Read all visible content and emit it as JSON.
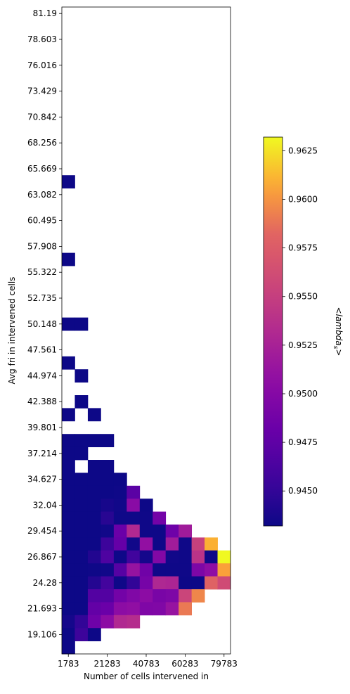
{
  "chart_data": {
    "type": "heatmap",
    "xlabel": "Number of cells intervened in",
    "ylabel": "Avg fri in intervened cells",
    "x_ticks": [
      "1783",
      "21283",
      "40783",
      "60283",
      "79783"
    ],
    "y_ticks": [
      "81.19",
      "78.603",
      "76.016",
      "73.429",
      "70.842",
      "68.256",
      "65.669",
      "63.082",
      "60.495",
      "57.908",
      "55.322",
      "52.735",
      "50.148",
      "47.561",
      "44.974",
      "42.388",
      "39.801",
      "37.214",
      "34.627",
      "32.04",
      "29.454",
      "26.867",
      "24.28",
      "21.693",
      "19.106"
    ],
    "grid": false,
    "colorbar": {
      "label": "<lambda_s>",
      "label_prefix": "<",
      "label_main": "lambda",
      "label_sub": "s",
      "label_suffix": ">",
      "min": 0.9432,
      "max": 0.9632,
      "ticks": [
        "0.9450",
        "0.9475",
        "0.9500",
        "0.9525",
        "0.9550",
        "0.9575",
        "0.9600",
        "0.9625"
      ],
      "colormap": "plasma"
    },
    "n_cols": 13,
    "n_rows": 50,
    "cells": [
      [
        0,
        13,
        0.9432
      ],
      [
        0,
        19,
        0.9432
      ],
      [
        0,
        24,
        0.9432
      ],
      [
        1,
        24,
        0.9432
      ],
      [
        0,
        27,
        0.9432
      ],
      [
        1,
        28,
        0.9432
      ],
      [
        1,
        30,
        0.9432
      ],
      [
        0,
        31,
        0.9432
      ],
      [
        2,
        31,
        0.9432
      ],
      [
        0,
        33,
        0.9432
      ],
      [
        1,
        33,
        0.9432
      ],
      [
        2,
        33,
        0.9432
      ],
      [
        3,
        33,
        0.9432
      ],
      [
        0,
        34,
        0.9432
      ],
      [
        1,
        34,
        0.9432
      ],
      [
        0,
        35,
        0.9432
      ],
      [
        2,
        35,
        0.9432
      ],
      [
        3,
        35,
        0.9432
      ],
      [
        0,
        36,
        0.9432
      ],
      [
        1,
        36,
        0.9432
      ],
      [
        2,
        36,
        0.9432
      ],
      [
        3,
        36,
        0.9432
      ],
      [
        4,
        36,
        0.9432
      ],
      [
        0,
        37,
        0.9432
      ],
      [
        1,
        37,
        0.9432
      ],
      [
        2,
        37,
        0.9432
      ],
      [
        3,
        37,
        0.9432
      ],
      [
        4,
        37,
        0.9433
      ],
      [
        5,
        37,
        0.9472
      ],
      [
        0,
        38,
        0.9432
      ],
      [
        1,
        38,
        0.9432
      ],
      [
        2,
        38,
        0.9432
      ],
      [
        3,
        38,
        0.9437
      ],
      [
        4,
        38,
        0.9434
      ],
      [
        5,
        38,
        0.9503
      ],
      [
        6,
        38,
        0.9432
      ],
      [
        0,
        39,
        0.9432
      ],
      [
        1,
        39,
        0.9432
      ],
      [
        2,
        39,
        0.9432
      ],
      [
        3,
        39,
        0.9445
      ],
      [
        4,
        39,
        0.9433
      ],
      [
        5,
        39,
        0.9433
      ],
      [
        6,
        39,
        0.9433
      ],
      [
        7,
        39,
        0.9488
      ],
      [
        0,
        40,
        0.9432
      ],
      [
        1,
        40,
        0.9432
      ],
      [
        2,
        40,
        0.9432
      ],
      [
        3,
        40,
        0.9434
      ],
      [
        4,
        40,
        0.9482
      ],
      [
        5,
        40,
        0.9531
      ],
      [
        6,
        40,
        0.9433
      ],
      [
        7,
        40,
        0.9433
      ],
      [
        8,
        40,
        0.9485
      ],
      [
        9,
        40,
        0.9519
      ],
      [
        0,
        41,
        0.9432
      ],
      [
        1,
        41,
        0.9432
      ],
      [
        2,
        41,
        0.9432
      ],
      [
        3,
        41,
        0.9455
      ],
      [
        4,
        41,
        0.9479
      ],
      [
        5,
        41,
        0.9434
      ],
      [
        6,
        41,
        0.9509
      ],
      [
        7,
        41,
        0.9433
      ],
      [
        8,
        41,
        0.952
      ],
      [
        9,
        41,
        0.9433
      ],
      [
        10,
        41,
        0.9552
      ],
      [
        11,
        41,
        0.961
      ],
      [
        0,
        42,
        0.9432
      ],
      [
        1,
        42,
        0.9432
      ],
      [
        2,
        42,
        0.9442
      ],
      [
        3,
        42,
        0.9465
      ],
      [
        4,
        42,
        0.9433
      ],
      [
        5,
        42,
        0.9457
      ],
      [
        6,
        42,
        0.9436
      ],
      [
        7,
        42,
        0.9498
      ],
      [
        8,
        42,
        0.9434
      ],
      [
        9,
        42,
        0.9433
      ],
      [
        10,
        42,
        0.954
      ],
      [
        11,
        42,
        0.9432
      ],
      [
        12,
        42,
        0.9632
      ],
      [
        0,
        43,
        0.9432
      ],
      [
        1,
        43,
        0.9432
      ],
      [
        2,
        43,
        0.9433
      ],
      [
        3,
        43,
        0.9434
      ],
      [
        4,
        43,
        0.947
      ],
      [
        5,
        43,
        0.9512
      ],
      [
        6,
        43,
        0.9486
      ],
      [
        7,
        43,
        0.9433
      ],
      [
        8,
        43,
        0.9433
      ],
      [
        9,
        43,
        0.9433
      ],
      [
        10,
        43,
        0.9495
      ],
      [
        11,
        43,
        0.9507
      ],
      [
        12,
        43,
        0.9605
      ],
      [
        0,
        44,
        0.9432
      ],
      [
        1,
        44,
        0.9432
      ],
      [
        2,
        44,
        0.9443
      ],
      [
        3,
        44,
        0.9458
      ],
      [
        4,
        44,
        0.9433
      ],
      [
        5,
        44,
        0.945
      ],
      [
        6,
        44,
        0.949
      ],
      [
        7,
        44,
        0.953
      ],
      [
        8,
        44,
        0.9528
      ],
      [
        9,
        44,
        0.9432
      ],
      [
        10,
        44,
        0.9432
      ],
      [
        11,
        44,
        0.958
      ],
      [
        12,
        44,
        0.956
      ],
      [
        0,
        45,
        0.9432
      ],
      [
        1,
        45,
        0.9432
      ],
      [
        2,
        45,
        0.9468
      ],
      [
        3,
        45,
        0.9468
      ],
      [
        4,
        45,
        0.9488
      ],
      [
        5,
        45,
        0.9497
      ],
      [
        6,
        45,
        0.9505
      ],
      [
        7,
        45,
        0.9492
      ],
      [
        8,
        45,
        0.9495
      ],
      [
        9,
        45,
        0.9555
      ],
      [
        10,
        45,
        0.9595
      ],
      [
        0,
        46,
        0.9432
      ],
      [
        1,
        46,
        0.9432
      ],
      [
        2,
        46,
        0.9478
      ],
      [
        3,
        46,
        0.9482
      ],
      [
        4,
        46,
        0.9505
      ],
      [
        5,
        46,
        0.9508
      ],
      [
        6,
        46,
        0.9496
      ],
      [
        7,
        46,
        0.9497
      ],
      [
        8,
        46,
        0.9512
      ],
      [
        9,
        46,
        0.959
      ],
      [
        0,
        47,
        0.9436
      ],
      [
        1,
        47,
        0.945
      ],
      [
        2,
        47,
        0.9485
      ],
      [
        3,
        47,
        0.9505
      ],
      [
        4,
        47,
        0.9531
      ],
      [
        5,
        47,
        0.9535
      ],
      [
        0,
        48,
        0.9432
      ],
      [
        1,
        48,
        0.9455
      ],
      [
        2,
        48,
        0.9432
      ],
      [
        0,
        49,
        0.9432
      ]
    ]
  }
}
